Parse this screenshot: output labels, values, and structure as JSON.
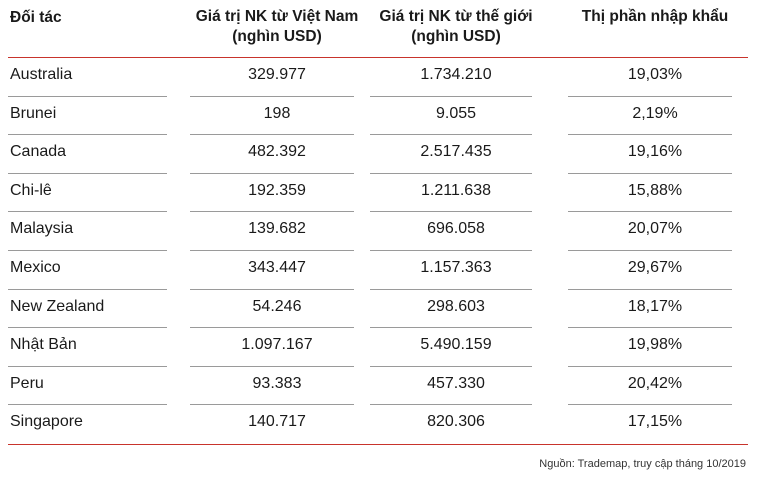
{
  "table": {
    "header": [
      "Đối tác",
      "Giá trị NK từ Việt Nam (nghìn USD)",
      "Giá trị NK từ thế giới (nghìn USD)",
      "Thị phần nhập khẩu"
    ],
    "rows": [
      [
        "Australia",
        "329.977",
        "1.734.210",
        "19,03%"
      ],
      [
        "Brunei",
        "198",
        "9.055",
        "2,19%"
      ],
      [
        "Canada",
        "482.392",
        "2.517.435",
        "19,16%"
      ],
      [
        "Chi-lê",
        "192.359",
        "1.211.638",
        "15,88%"
      ],
      [
        "Malaysia",
        "139.682",
        "696.058",
        "20,07%"
      ],
      [
        "Mexico",
        "343.447",
        "1.157.363",
        "29,67%"
      ],
      [
        "New Zealand",
        "54.246",
        "298.603",
        "18,17%"
      ],
      [
        "Nhật Bản",
        "1.097.167",
        "5.490.159",
        "19,98%"
      ],
      [
        "Peru",
        "93.383",
        "457.330",
        "20,42%"
      ],
      [
        "Singapore",
        "140.717",
        "820.306",
        "17,15%"
      ]
    ]
  },
  "source": "Nguồn: Trademap, truy cập tháng 10/2019"
}
